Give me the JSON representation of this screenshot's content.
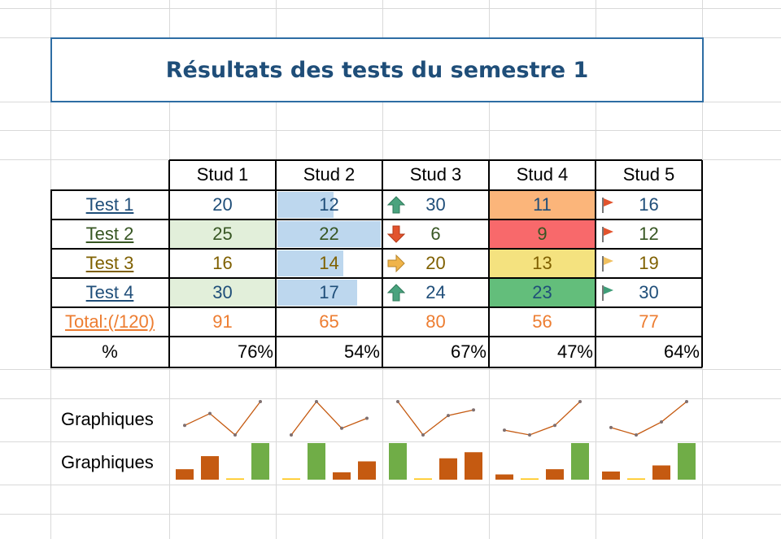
{
  "title": "Résultats des tests du semestre 1",
  "headers": [
    "Stud 1",
    "Stud 2",
    "Stud 3",
    "Stud 4",
    "Stud 5"
  ],
  "rows": [
    {
      "label": "Test 1",
      "label_color": "#1f4e79",
      "values": [
        20,
        12,
        30,
        11,
        16
      ]
    },
    {
      "label": "Test 2",
      "label_color": "#375623",
      "values": [
        25,
        22,
        6,
        9,
        12
      ]
    },
    {
      "label": "Test 3",
      "label_color": "#7f6000",
      "values": [
        16,
        14,
        20,
        13,
        19
      ]
    },
    {
      "label": "Test 4",
      "label_color": "#1f4e79",
      "values": [
        30,
        17,
        24,
        23,
        30
      ]
    }
  ],
  "total": {
    "label": "Total:(/120)",
    "values": [
      91,
      65,
      80,
      56,
      77
    ]
  },
  "percent": {
    "label": "%",
    "values": [
      "76%",
      "54%",
      "67%",
      "47%",
      "64%"
    ]
  },
  "sparkline_labels": [
    "Graphiques",
    "Graphiques"
  ],
  "colors": {
    "accent": "#2e6da4",
    "title": "#1f4e79",
    "total": "#ed7d31",
    "stud1_fill": "#e2efda",
    "databar": "#bdd7ee",
    "scale_high": "#63be7b",
    "scale_mid": "#f4e27f",
    "scale_low": "#f8696b",
    "scale_midlow": "#fbb57a",
    "spark_line": "#c55a11",
    "spark_bar": "#c55a11",
    "spark_high": "#70ad47",
    "spark_low": "#ffc000"
  },
  "stud3_icons": [
    "arrow-up-icon",
    "arrow-down-icon",
    "arrow-right-icon",
    "arrow-up-icon"
  ],
  "stud4_fills": [
    "#fbb57a",
    "#f8696b",
    "#f4e27f",
    "#63be7b"
  ],
  "stud5_icons": [
    "flag-red-icon",
    "flag-red-icon",
    "flag-yellow-icon",
    "flag-green-icon"
  ]
}
